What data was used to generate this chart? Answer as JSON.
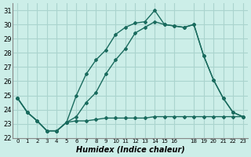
{
  "xlabel": "Humidex (Indice chaleur)",
  "background_color": "#cceee8",
  "grid_color": "#aad4ce",
  "line_color": "#1a6b5e",
  "xlim": [
    -0.5,
    23.5
  ],
  "ylim": [
    22,
    31.5
  ],
  "yticks": [
    22,
    23,
    24,
    25,
    26,
    27,
    28,
    29,
    30,
    31
  ],
  "xtick_positions": [
    0,
    1,
    2,
    3,
    4,
    5,
    6,
    7,
    8,
    9,
    10,
    11,
    12,
    13,
    14,
    15,
    16,
    18,
    19,
    20,
    21,
    22,
    23
  ],
  "xtick_labels": [
    "0",
    "1",
    "2",
    "3",
    "4",
    "5",
    "6",
    "7",
    "8",
    "9",
    "10",
    "11",
    "12",
    "13",
    "14",
    "15",
    "16",
    "18",
    "19",
    "20",
    "21",
    "22",
    "23"
  ],
  "s1": [
    24.8,
    23.8,
    23.2,
    22.5,
    22.5,
    23.1,
    25.0,
    26.5,
    27.5,
    28.2,
    29.3,
    29.8,
    30.1,
    30.2,
    31.0,
    30.0,
    29.9,
    29.8,
    30.0,
    27.8,
    26.1,
    24.8,
    23.8,
    23.5
  ],
  "s2": [
    24.8,
    23.8,
    23.2,
    22.5,
    22.5,
    23.1,
    23.2,
    23.2,
    23.3,
    23.4,
    23.4,
    23.4,
    23.4,
    23.4,
    23.5,
    23.5,
    23.5,
    23.5,
    23.5,
    23.5,
    23.5,
    23.5,
    23.5,
    23.5
  ],
  "s3": [
    24.8,
    23.8,
    23.2,
    22.5,
    22.5,
    23.1,
    23.5,
    24.5,
    25.2,
    26.5,
    27.5,
    28.3,
    29.4,
    29.8,
    30.2,
    30.0,
    29.9,
    29.8,
    30.0,
    27.8,
    26.1,
    24.8,
    23.8,
    23.5
  ]
}
